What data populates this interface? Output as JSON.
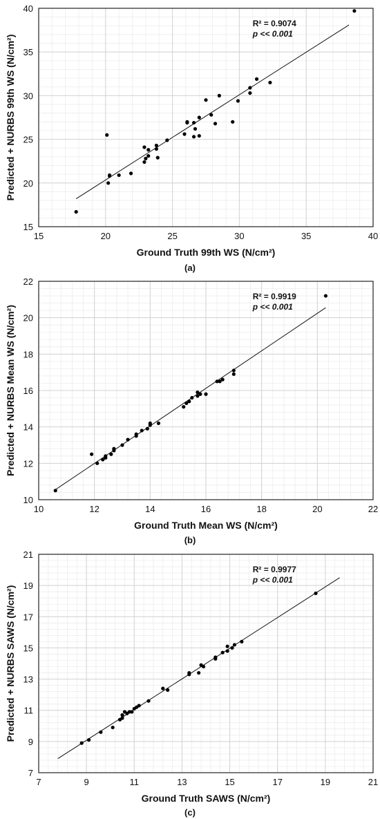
{
  "chart_data": [
    {
      "type": "scatter",
      "caption": "(a)",
      "xlabel": "Ground Truth 99th WS (N/cm²)",
      "ylabel": "Predicted + NURBS 99th WS (N/cm²)",
      "xlim": [
        15,
        40
      ],
      "ylim": [
        15,
        40
      ],
      "xticks": [
        15,
        20,
        25,
        30,
        35,
        40
      ],
      "yticks": [
        15,
        20,
        25,
        30,
        35,
        40
      ],
      "grid": true,
      "r2_text": "R² = 0.9074",
      "p_text": "p << 0.001",
      "fit_line": [
        [
          17.8,
          18.2
        ],
        [
          38.2,
          38.1
        ]
      ],
      "points": [
        [
          17.8,
          16.7
        ],
        [
          20.1,
          25.5
        ],
        [
          20.2,
          20.0
        ],
        [
          20.3,
          20.8
        ],
        [
          20.3,
          20.9
        ],
        [
          21.0,
          20.9
        ],
        [
          21.9,
          21.1
        ],
        [
          22.9,
          22.4
        ],
        [
          22.9,
          24.1
        ],
        [
          23.0,
          22.8
        ],
        [
          23.2,
          23.1
        ],
        [
          23.2,
          23.8
        ],
        [
          23.8,
          23.9
        ],
        [
          23.8,
          24.3
        ],
        [
          23.9,
          22.9
        ],
        [
          24.6,
          24.9
        ],
        [
          25.9,
          25.6
        ],
        [
          26.1,
          27.0
        ],
        [
          26.1,
          26.9
        ],
        [
          26.6,
          26.9
        ],
        [
          26.6,
          25.3
        ],
        [
          26.7,
          26.2
        ],
        [
          27.0,
          27.5
        ],
        [
          27.0,
          25.4
        ],
        [
          27.5,
          29.5
        ],
        [
          27.9,
          27.8
        ],
        [
          28.2,
          26.8
        ],
        [
          28.5,
          30.0
        ],
        [
          29.5,
          27.0
        ],
        [
          29.9,
          29.4
        ],
        [
          30.8,
          30.3
        ],
        [
          30.8,
          30.9
        ],
        [
          31.3,
          31.9
        ],
        [
          32.3,
          31.5
        ],
        [
          38.6,
          39.7
        ]
      ]
    },
    {
      "type": "scatter",
      "caption": "(b)",
      "xlabel": "Ground Truth Mean WS (N/cm²)",
      "ylabel": "Predicted + NURBS Mean WS (N/cm²)",
      "xlim": [
        10,
        22
      ],
      "ylim": [
        10,
        22
      ],
      "xticks": [
        10,
        12,
        14,
        16,
        18,
        20,
        22
      ],
      "yticks": [
        10,
        12,
        14,
        16,
        18,
        20,
        22
      ],
      "grid": true,
      "r2_text": "R² = 0.9919",
      "p_text": "p << 0.001",
      "fit_line": [
        [
          10.55,
          10.5
        ],
        [
          20.3,
          20.55
        ]
      ],
      "points": [
        [
          10.6,
          10.5
        ],
        [
          11.9,
          12.5
        ],
        [
          12.1,
          12.0
        ],
        [
          12.3,
          12.2
        ],
        [
          12.4,
          12.3
        ],
        [
          12.4,
          12.4
        ],
        [
          12.6,
          12.5
        ],
        [
          12.7,
          12.7
        ],
        [
          12.7,
          12.8
        ],
        [
          13.0,
          13.0
        ],
        [
          13.2,
          13.3
        ],
        [
          13.5,
          13.5
        ],
        [
          13.5,
          13.6
        ],
        [
          13.7,
          13.8
        ],
        [
          13.9,
          13.9
        ],
        [
          14.0,
          14.1
        ],
        [
          14.0,
          14.2
        ],
        [
          14.3,
          14.2
        ],
        [
          15.2,
          15.1
        ],
        [
          15.3,
          15.3
        ],
        [
          15.4,
          15.4
        ],
        [
          15.5,
          15.6
        ],
        [
          15.7,
          15.7
        ],
        [
          15.7,
          15.9
        ],
        [
          15.8,
          15.8
        ],
        [
          16.0,
          15.8
        ],
        [
          16.4,
          16.5
        ],
        [
          16.5,
          16.5
        ],
        [
          16.6,
          16.6
        ],
        [
          17.0,
          16.9
        ],
        [
          17.0,
          17.1
        ],
        [
          20.3,
          21.2
        ]
      ]
    },
    {
      "type": "scatter",
      "caption": "(c)",
      "xlabel": "Ground Truth SAWS (N/cm²)",
      "ylabel": "Predicted + NURBS SAWS (N/cm²)",
      "xlim": [
        7,
        21
      ],
      "ylim": [
        7,
        21
      ],
      "xticks": [
        7,
        9,
        11,
        13,
        15,
        17,
        19,
        21
      ],
      "yticks": [
        7,
        9,
        11,
        13,
        15,
        17,
        19,
        21
      ],
      "grid": true,
      "r2_text": "R² = 0.9977",
      "p_text": "p << 0.001",
      "fit_line": [
        [
          7.8,
          7.9
        ],
        [
          19.6,
          19.5
        ]
      ],
      "points": [
        [
          8.8,
          8.9
        ],
        [
          9.1,
          9.1
        ],
        [
          9.6,
          9.6
        ],
        [
          10.1,
          9.9
        ],
        [
          10.4,
          10.4
        ],
        [
          10.5,
          10.5
        ],
        [
          10.5,
          10.7
        ],
        [
          10.6,
          10.9
        ],
        [
          10.7,
          10.8
        ],
        [
          10.8,
          10.9
        ],
        [
          10.9,
          10.9
        ],
        [
          11.0,
          11.1
        ],
        [
          11.1,
          11.2
        ],
        [
          11.2,
          11.3
        ],
        [
          11.6,
          11.6
        ],
        [
          12.2,
          12.4
        ],
        [
          12.4,
          12.3
        ],
        [
          13.3,
          13.3
        ],
        [
          13.3,
          13.4
        ],
        [
          13.7,
          13.4
        ],
        [
          13.8,
          13.9
        ],
        [
          13.9,
          13.8
        ],
        [
          14.4,
          14.3
        ],
        [
          14.4,
          14.4
        ],
        [
          14.7,
          14.7
        ],
        [
          14.9,
          14.8
        ],
        [
          14.9,
          15.1
        ],
        [
          15.1,
          15.0
        ],
        [
          15.2,
          15.2
        ],
        [
          15.5,
          15.4
        ],
        [
          18.6,
          18.5
        ]
      ]
    }
  ]
}
